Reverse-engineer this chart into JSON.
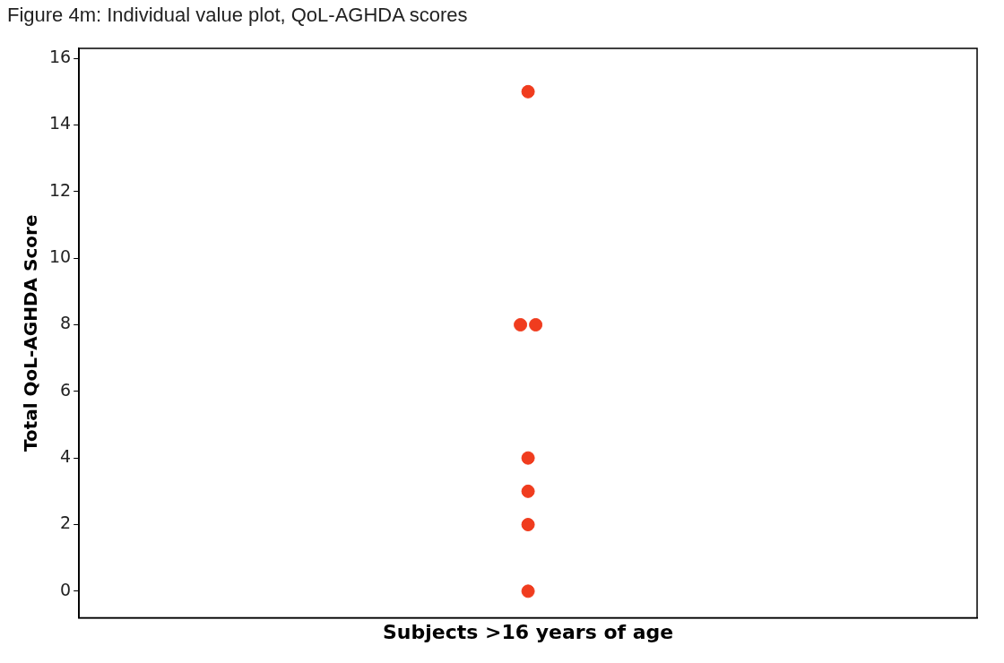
{
  "chart_data": {
    "type": "scatter",
    "title": "Figure 4m: Individual value plot, QoL-AGHDA scores",
    "xlabel": "Subjects >16 years of age",
    "ylabel": "Total QoL-AGHDA Score",
    "categories": [
      null
    ],
    "series": [
      {
        "color": "#f03c1e",
        "values": [
          15
        ]
      },
      {
        "color": "#f03c1e",
        "values": [
          8
        ]
      },
      {
        "color": "#f03c1e",
        "values": [
          8
        ]
      },
      {
        "color": "#f03c1e",
        "values": [
          4
        ]
      },
      {
        "color": "#f03c1e",
        "values": [
          3
        ]
      },
      {
        "color": "#f03c1e",
        "values": [
          2
        ]
      },
      {
        "color": "#f03c1e",
        "values": [
          0
        ]
      }
    ],
    "ylim": [
      -0.8,
      16.3
    ],
    "yticks": [
      0,
      2,
      4,
      6,
      8,
      10,
      12,
      14,
      16
    ],
    "tick_labels": "y",
    "grid": false,
    "legend": false,
    "marker": "circle"
  }
}
